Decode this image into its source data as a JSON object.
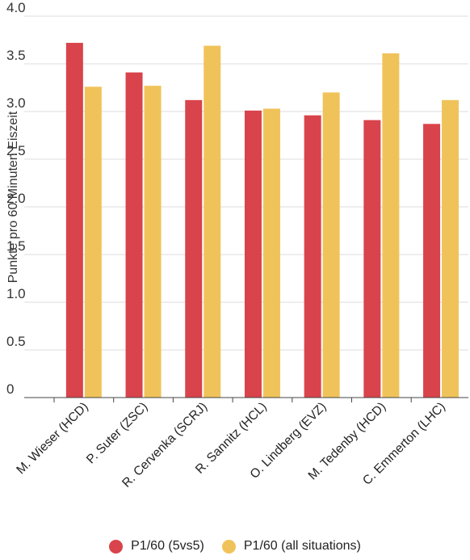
{
  "chart_data": {
    "type": "bar",
    "ylabel": "Punkte pro 60 Minuten Eiszeit",
    "xlabel": "",
    "ylim": [
      0,
      4.0
    ],
    "yticks": [
      0,
      0.5,
      1.0,
      1.5,
      2.0,
      2.5,
      3.0,
      3.5,
      4.0
    ],
    "ytick_labels": [
      "0",
      "0.5",
      "1.0",
      "1.5",
      "2.0",
      "2.5",
      "3.0",
      "3.5",
      "4.0"
    ],
    "grid": true,
    "legend_position": "bottom",
    "categories": [
      "M. Wieser (HCD)",
      "P. Suter (ZSC)",
      "R. Cervenka (SCRJ)",
      "R. Sannitz (HCL)",
      "O. Lindberg (EVZ)",
      "M. Tedenby (HCD)",
      "C. Emmerton (LHC)"
    ],
    "series": [
      {
        "name": "P1/60 (5vs5)",
        "color": "#d9434b",
        "values": [
          3.72,
          3.41,
          3.12,
          3.01,
          2.96,
          2.91,
          2.87
        ]
      },
      {
        "name": "P1/60 (all situations)",
        "color": "#f0c35a",
        "values": [
          3.26,
          3.27,
          3.69,
          3.03,
          3.2,
          3.61,
          3.12
        ]
      }
    ]
  }
}
